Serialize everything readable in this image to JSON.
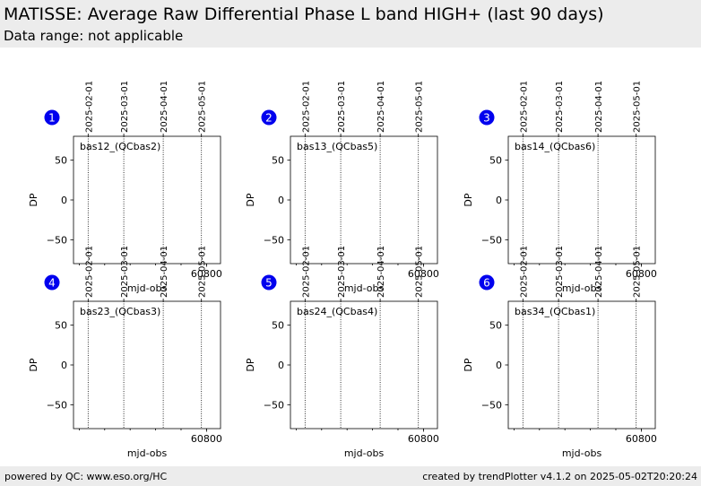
{
  "header": {
    "title": "MATISSE: Average Raw Differential Phase L band HIGH+ (last 90 days)",
    "subtitle": "Data range: not applicable"
  },
  "footer": {
    "left": "powered by QC: www.eso.org/HC",
    "right": "created by trendPlotter v4.1.2 on 2025-05-02T20:20:24"
  },
  "colors": {
    "header_bg": "#ececec",
    "badge": "#0000ee",
    "axis": "#000000"
  },
  "chart_data": [
    {
      "type": "scatter",
      "panel": "1",
      "label": "bas12_(QCbas2)",
      "xlabel": "mjd-obs",
      "ylabel": "DP",
      "xlim": [
        60695.5,
        60811.0
      ],
      "ylim": [
        -80,
        80
      ],
      "yticks": [
        50,
        0,
        -50
      ],
      "xticks": [
        60800
      ],
      "date_lines": [
        {
          "label": "2025-02-01",
          "mjd": 60707
        },
        {
          "label": "2025-03-01",
          "mjd": 60735
        },
        {
          "label": "2025-04-01",
          "mjd": 60766
        },
        {
          "label": "2025-05-01",
          "mjd": 60796
        }
      ],
      "series": [
        {
          "values": []
        }
      ]
    },
    {
      "type": "scatter",
      "panel": "2",
      "label": "bas13_(QCbas5)",
      "xlabel": "mjd-obs",
      "ylabel": "DP",
      "xlim": [
        60695.5,
        60811.0
      ],
      "ylim": [
        -80,
        80
      ],
      "yticks": [
        50,
        0,
        -50
      ],
      "xticks": [
        60800
      ],
      "date_lines": [
        {
          "label": "2025-02-01",
          "mjd": 60707
        },
        {
          "label": "2025-03-01",
          "mjd": 60735
        },
        {
          "label": "2025-04-01",
          "mjd": 60766
        },
        {
          "label": "2025-05-01",
          "mjd": 60796
        }
      ],
      "series": [
        {
          "values": []
        }
      ]
    },
    {
      "type": "scatter",
      "panel": "3",
      "label": "bas14_(QCbas6)",
      "xlabel": "mjd-obs",
      "ylabel": "DP",
      "xlim": [
        60695.5,
        60811.0
      ],
      "ylim": [
        -80,
        80
      ],
      "yticks": [
        50,
        0,
        -50
      ],
      "xticks": [
        60800
      ],
      "date_lines": [
        {
          "label": "2025-02-01",
          "mjd": 60707
        },
        {
          "label": "2025-03-01",
          "mjd": 60735
        },
        {
          "label": "2025-04-01",
          "mjd": 60766
        },
        {
          "label": "2025-05-01",
          "mjd": 60796
        }
      ],
      "series": [
        {
          "values": []
        }
      ]
    },
    {
      "type": "scatter",
      "panel": "4",
      "label": "bas23_(QCbas3)",
      "xlabel": "mjd-obs",
      "ylabel": "DP",
      "xlim": [
        60695.5,
        60811.0
      ],
      "ylim": [
        -80,
        80
      ],
      "yticks": [
        50,
        0,
        -50
      ],
      "xticks": [
        60800
      ],
      "date_lines": [
        {
          "label": "2025-02-01",
          "mjd": 60707
        },
        {
          "label": "2025-03-01",
          "mjd": 60735
        },
        {
          "label": "2025-04-01",
          "mjd": 60766
        },
        {
          "label": "2025-05-01",
          "mjd": 60796
        }
      ],
      "series": [
        {
          "values": []
        }
      ]
    },
    {
      "type": "scatter",
      "panel": "5",
      "label": "bas24_(QCbas4)",
      "xlabel": "mjd-obs",
      "ylabel": "DP",
      "xlim": [
        60695.5,
        60811.0
      ],
      "ylim": [
        -80,
        80
      ],
      "yticks": [
        50,
        0,
        -50
      ],
      "xticks": [
        60800
      ],
      "date_lines": [
        {
          "label": "2025-02-01",
          "mjd": 60707
        },
        {
          "label": "2025-03-01",
          "mjd": 60735
        },
        {
          "label": "2025-04-01",
          "mjd": 60766
        },
        {
          "label": "2025-05-01",
          "mjd": 60796
        }
      ],
      "series": [
        {
          "values": []
        }
      ]
    },
    {
      "type": "scatter",
      "panel": "6",
      "label": "bas34_(QCbas1)",
      "xlabel": "mjd-obs",
      "ylabel": "DP",
      "xlim": [
        60695.5,
        60811.0
      ],
      "ylim": [
        -80,
        80
      ],
      "yticks": [
        50,
        0,
        -50
      ],
      "xticks": [
        60800
      ],
      "date_lines": [
        {
          "label": "2025-02-01",
          "mjd": 60707
        },
        {
          "label": "2025-03-01",
          "mjd": 60735
        },
        {
          "label": "2025-04-01",
          "mjd": 60766
        },
        {
          "label": "2025-05-01",
          "mjd": 60796
        }
      ],
      "series": [
        {
          "values": []
        }
      ]
    }
  ]
}
